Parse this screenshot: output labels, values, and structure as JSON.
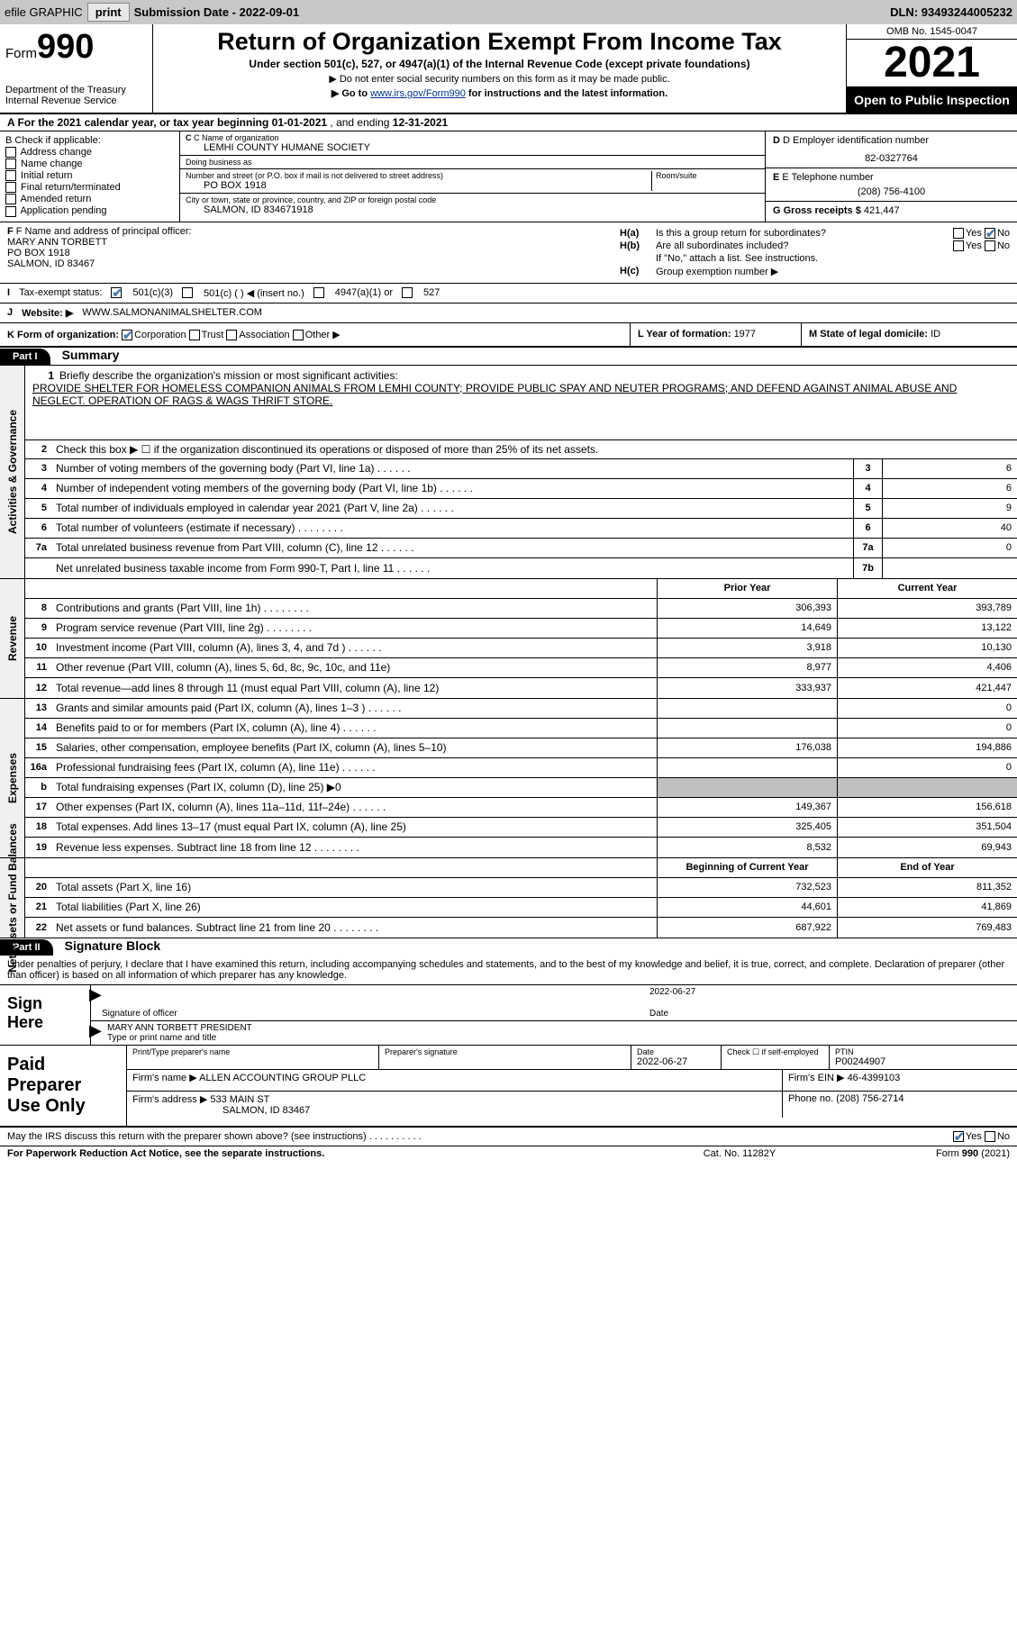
{
  "topbar": {
    "efile": "efile GRAPHIC",
    "print": "print",
    "sub_date_label": "Submission Date - ",
    "sub_date": "2022-09-01",
    "dln_label": "DLN: ",
    "dln": "93493244005232"
  },
  "header": {
    "form_prefix": "Form",
    "form_num": "990",
    "dept": "Department of the Treasury Internal Revenue Service",
    "title": "Return of Organization Exempt From Income Tax",
    "sub": "Under section 501(c), 527, or 4947(a)(1) of the Internal Revenue Code (except private foundations)",
    "note1": "▶ Do not enter social security numbers on this form as it may be made public.",
    "note2_pre": "▶ Go to ",
    "note2_link": "www.irs.gov/Form990",
    "note2_post": " for instructions and the latest information.",
    "omb": "OMB No. 1545-0047",
    "year": "2021",
    "open": "Open to Public Inspection"
  },
  "row_a": {
    "text": "A For the 2021 calendar year, or tax year beginning ",
    "begin": "01-01-2021",
    "mid": "  , and ending ",
    "end": "12-31-2021"
  },
  "col_b": {
    "label": "B Check if applicable:",
    "opts": [
      "Address change",
      "Name change",
      "Initial return",
      "Final return/terminated",
      "Amended return",
      "Application pending"
    ]
  },
  "col_c": {
    "name_label": "C Name of organization",
    "name": "LEMHI COUNTY HUMANE SOCIETY",
    "dba_label": "Doing business as",
    "dba": "",
    "addr_label": "Number and street (or P.O. box if mail is not delivered to street address)",
    "room_label": "Room/suite",
    "addr": "PO BOX 1918",
    "city_label": "City or town, state or province, country, and ZIP or foreign postal code",
    "city": "SALMON, ID  834671918"
  },
  "col_d": {
    "ein_label": "D Employer identification number",
    "ein": "82-0327764",
    "phone_label": "E Telephone number",
    "phone": "(208) 756-4100",
    "gross_label": "G Gross receipts $ ",
    "gross": "421,447"
  },
  "col_f": {
    "label": "F Name and address of principal officer:",
    "name": "MARY ANN TORBETT",
    "addr1": "PO BOX 1918",
    "addr2": "SALMON, ID  83467"
  },
  "col_h": {
    "ha_label": "H(a)",
    "ha_txt": "Is this a group return for subordinates?",
    "hb_label": "H(b)",
    "hb_txt": "Are all subordinates included?",
    "hb_note": "If \"No,\" attach a list. See instructions.",
    "hc_label": "H(c)",
    "hc_txt": "Group exemption number ▶",
    "yes": "Yes",
    "no": "No"
  },
  "row_i": {
    "label": "I",
    "txt": "Tax-exempt status:",
    "opt1": "501(c)(3)",
    "opt2": "501(c) (  ) ◀ (insert no.)",
    "opt3": "4947(a)(1) or",
    "opt4": "527"
  },
  "row_j": {
    "label": "J",
    "txt": "Website: ▶",
    "val": "WWW.SALMONANIMALSHELTER.COM"
  },
  "row_k": {
    "label": "K Form of organization:",
    "opt1": "Corporation",
    "opt2": "Trust",
    "opt3": "Association",
    "opt4": "Other ▶"
  },
  "row_l": {
    "label": "L Year of formation: ",
    "val": "1977"
  },
  "row_m": {
    "label": "M State of legal domicile: ",
    "val": "ID"
  },
  "part1": {
    "hdr": "Part I",
    "title": "Summary",
    "line1_label": "Briefly describe the organization's mission or most significant activities:",
    "mission": "PROVIDE SHELTER FOR HOMELESS COMPANION ANIMALS FROM LEMHI COUNTY; PROVIDE PUBLIC SPAY AND NEUTER PROGRAMS; AND DEFEND AGAINST ANIMAL ABUSE AND NEGLECT. OPERATION OF RAGS & WAGS THRIFT STORE.",
    "line2": "Check this box ▶ ☐ if the organization discontinued its operations or disposed of more than 25% of its net assets.",
    "vert1": "Activities & Governance",
    "vert2": "Revenue",
    "vert3": "Expenses",
    "vert4": "Net Assets or Fund Balances",
    "prior_hdr": "Prior Year",
    "curr_hdr": "Current Year",
    "begin_hdr": "Beginning of Current Year",
    "end_hdr": "End of Year",
    "lines_gov": [
      {
        "n": "3",
        "t": "Number of voting members of the governing body (Part VI, line 1a)",
        "dots": "s",
        "box": "3",
        "v": "6"
      },
      {
        "n": "4",
        "t": "Number of independent voting members of the governing body (Part VI, line 1b)",
        "dots": "s",
        "box": "4",
        "v": "6"
      },
      {
        "n": "5",
        "t": "Total number of individuals employed in calendar year 2021 (Part V, line 2a)",
        "dots": "s",
        "box": "5",
        "v": "9"
      },
      {
        "n": "6",
        "t": "Total number of volunteers (estimate if necessary)",
        "dots": "m",
        "box": "6",
        "v": "40"
      },
      {
        "n": "7a",
        "t": "Total unrelated business revenue from Part VIII, column (C), line 12",
        "dots": "s",
        "box": "7a",
        "v": "0"
      },
      {
        "n": "",
        "t": "Net unrelated business taxable income from Form 990-T, Part I, line 11",
        "dots": "s",
        "box": "7b",
        "v": ""
      }
    ],
    "lines_rev": [
      {
        "n": "8",
        "t": "Contributions and grants (Part VIII, line 1h)",
        "dots": "m",
        "p": "306,393",
        "c": "393,789"
      },
      {
        "n": "9",
        "t": "Program service revenue (Part VIII, line 2g)",
        "dots": "m",
        "p": "14,649",
        "c": "13,122"
      },
      {
        "n": "10",
        "t": "Investment income (Part VIII, column (A), lines 3, 4, and 7d )",
        "dots": "s",
        "p": "3,918",
        "c": "10,130"
      },
      {
        "n": "11",
        "t": "Other revenue (Part VIII, column (A), lines 5, 6d, 8c, 9c, 10c, and 11e)",
        "dots": "",
        "p": "8,977",
        "c": "4,406"
      },
      {
        "n": "12",
        "t": "Total revenue—add lines 8 through 11 (must equal Part VIII, column (A), line 12)",
        "dots": "",
        "p": "333,937",
        "c": "421,447"
      }
    ],
    "lines_exp": [
      {
        "n": "13",
        "t": "Grants and similar amounts paid (Part IX, column (A), lines 1–3 )",
        "dots": "s",
        "p": "",
        "c": "0"
      },
      {
        "n": "14",
        "t": "Benefits paid to or for members (Part IX, column (A), line 4)",
        "dots": "s",
        "p": "",
        "c": "0"
      },
      {
        "n": "15",
        "t": "Salaries, other compensation, employee benefits (Part IX, column (A), lines 5–10)",
        "dots": "",
        "p": "176,038",
        "c": "194,886"
      },
      {
        "n": "16a",
        "t": "Professional fundraising fees (Part IX, column (A), line 11e)",
        "dots": "s",
        "p": "",
        "c": "0"
      },
      {
        "n": "b",
        "t": "Total fundraising expenses (Part IX, column (D), line 25) ▶0",
        "dots": "",
        "p": "SHADE",
        "c": "SHADE"
      },
      {
        "n": "17",
        "t": "Other expenses (Part IX, column (A), lines 11a–11d, 11f–24e)",
        "dots": "s",
        "p": "149,367",
        "c": "156,618"
      },
      {
        "n": "18",
        "t": "Total expenses. Add lines 13–17 (must equal Part IX, column (A), line 25)",
        "dots": "",
        "p": "325,405",
        "c": "351,504"
      },
      {
        "n": "19",
        "t": "Revenue less expenses. Subtract line 18 from line 12",
        "dots": "m",
        "p": "8,532",
        "c": "69,943"
      }
    ],
    "lines_net": [
      {
        "n": "20",
        "t": "Total assets (Part X, line 16)",
        "dots": "",
        "p": "732,523",
        "c": "811,352"
      },
      {
        "n": "21",
        "t": "Total liabilities (Part X, line 26)",
        "dots": "",
        "p": "44,601",
        "c": "41,869"
      },
      {
        "n": "22",
        "t": "Net assets or fund balances. Subtract line 21 from line 20",
        "dots": "m",
        "p": "687,922",
        "c": "769,483"
      }
    ]
  },
  "part2": {
    "hdr": "Part II",
    "title": "Signature Block",
    "declare": "Under penalties of perjury, I declare that I have examined this return, including accompanying schedules and statements, and to the best of my knowledge and belief, it is true, correct, and complete. Declaration of preparer (other than officer) is based on all information of which preparer has any knowledge.",
    "sign_here": "Sign Here",
    "sig_officer": "Signature of officer",
    "sig_date": "2022-06-27",
    "date_label": "Date",
    "sig_name": "MARY ANN TORBETT  PRESIDENT",
    "sig_name_label": "Type or print name and title",
    "paid_label": "Paid Preparer Use Only",
    "pp_name_label": "Print/Type preparer's name",
    "pp_sig_label": "Preparer's signature",
    "pp_date_label": "Date",
    "pp_date": "2022-06-27",
    "pp_self_label": "Check ☐ if self-employed",
    "pp_ptin_label": "PTIN",
    "pp_ptin": "P00244907",
    "firm_name_label": "Firm's name    ▶ ",
    "firm_name": "ALLEN ACCOUNTING GROUP PLLC",
    "firm_ein_label": "Firm's EIN ▶ ",
    "firm_ein": "46-4399103",
    "firm_addr_label": "Firm's address ▶ ",
    "firm_addr1": "533 MAIN ST",
    "firm_addr2": "SALMON, ID  83467",
    "phone_label": "Phone no. ",
    "phone": "(208) 756-2714",
    "discuss": "May the IRS discuss this return with the preparer shown above? (see instructions)",
    "yes": "Yes",
    "no": "No"
  },
  "footer": {
    "pra": "For Paperwork Reduction Act Notice, see the separate instructions.",
    "cat": "Cat. No. 11282Y",
    "form": "Form 990 (2021)"
  }
}
